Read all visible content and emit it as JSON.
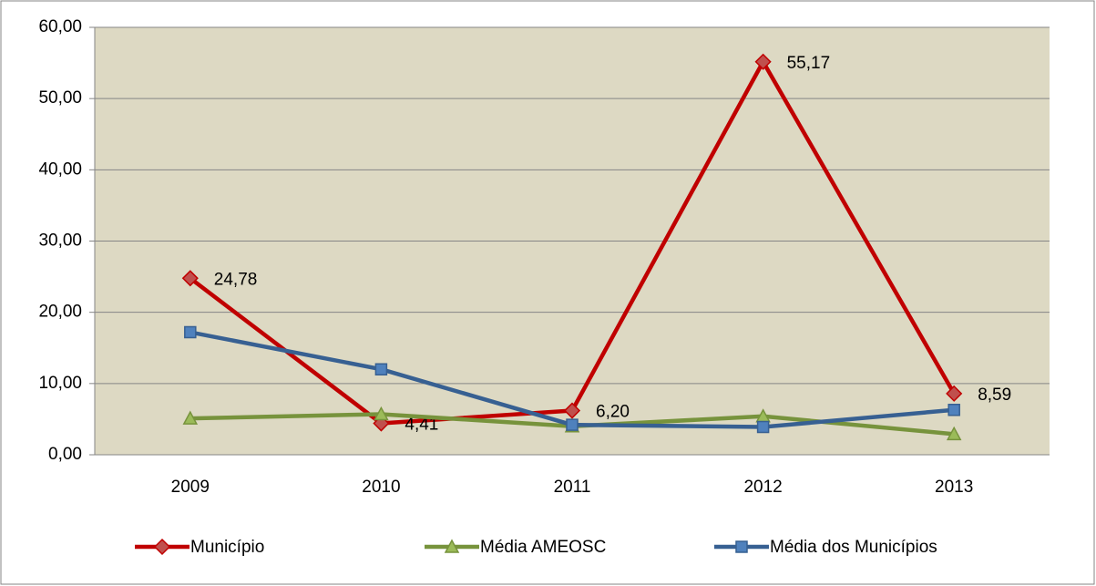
{
  "chart_data": {
    "type": "line",
    "categories": [
      "2009",
      "2010",
      "2011",
      "2012",
      "2013"
    ],
    "series": [
      {
        "name": "Município",
        "color": "#c00000",
        "marker": "diamond",
        "values": [
          24.78,
          4.41,
          6.2,
          55.17,
          8.59
        ],
        "value_labels": [
          "24,78",
          "4,41",
          "6,20",
          "55,17",
          "8,59"
        ]
      },
      {
        "name": "Média AMEOSC",
        "color": "#77933c",
        "marker": "triangle",
        "values": [
          5.1,
          5.7,
          4.0,
          5.4,
          2.9
        ]
      },
      {
        "name": "Média dos Municípios",
        "color": "#376092",
        "marker": "square",
        "values": [
          17.2,
          12.0,
          4.2,
          3.9,
          6.3
        ]
      }
    ],
    "ylim": [
      0,
      60
    ],
    "yticks": [
      {
        "value": 0,
        "label": "0,00"
      },
      {
        "value": 10,
        "label": "10,00"
      },
      {
        "value": 20,
        "label": "20,00"
      },
      {
        "value": 30,
        "label": "30,00"
      },
      {
        "value": 40,
        "label": "40,00"
      },
      {
        "value": 50,
        "label": "50,00"
      },
      {
        "value": 60,
        "label": "60,00"
      }
    ],
    "grid": true,
    "legend": "bottom"
  }
}
